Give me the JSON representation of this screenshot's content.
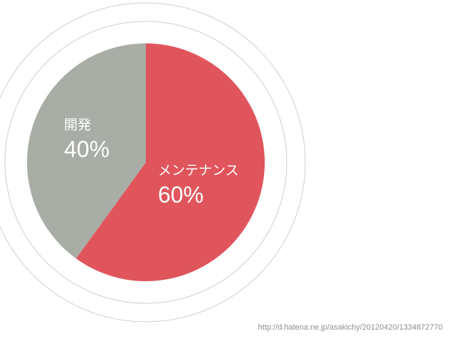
{
  "chart_data": {
    "type": "pie",
    "categories": [
      "メンテナンス",
      "開発"
    ],
    "values": [
      60,
      40
    ],
    "value_labels": [
      "60%",
      "40%"
    ],
    "colors": [
      "#e0555c",
      "#a8ada6"
    ],
    "source": "http://d.hatena.ne.jp/asakichy/20120420/1334872770"
  }
}
